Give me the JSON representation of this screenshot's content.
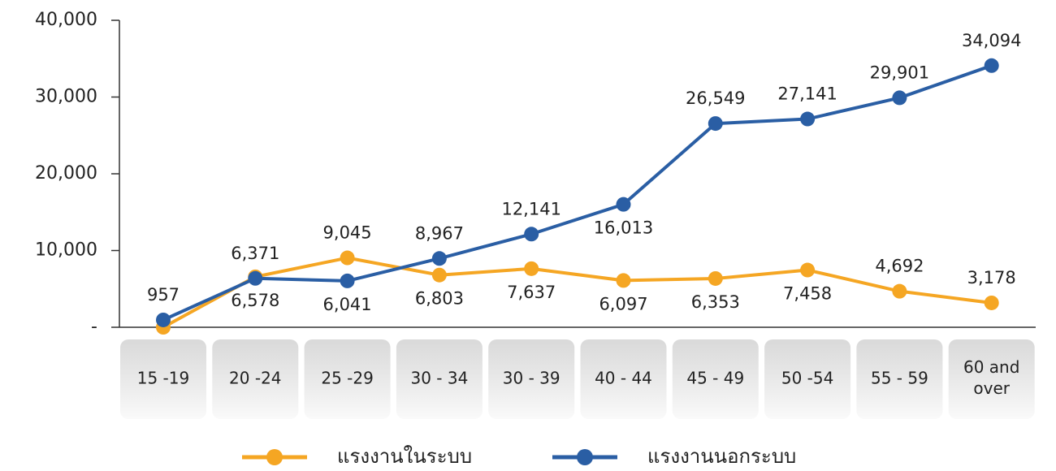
{
  "chart_data": {
    "type": "line",
    "categories": [
      "15 -19",
      "20 -24",
      "25 -29",
      "30 - 34",
      "30 - 39",
      "40 - 44",
      "45 - 49",
      "50 -54",
      "55 - 59",
      "60 and over"
    ],
    "series": [
      {
        "name": "แรงงานในระบบ",
        "color": "#f5a623",
        "values": [
          0,
          6578,
          9045,
          6803,
          7637,
          6097,
          6353,
          7458,
          4692,
          3178
        ],
        "value_labels": [
          null,
          "6,578",
          "9,045",
          "6,803",
          "7,637",
          "6,097",
          "6,353",
          "7,458",
          "4,692",
          "3,178"
        ]
      },
      {
        "name": "แรงงานนอกระบบ",
        "color": "#2a5ea4",
        "values": [
          957,
          6371,
          6041,
          8967,
          12141,
          16013,
          26549,
          27141,
          29901,
          34094
        ],
        "value_labels": [
          "957",
          "6,371",
          "6,041",
          "8,967",
          "12,141",
          "16,013",
          "26,549",
          "27,141",
          "29,901",
          "34,094"
        ]
      }
    ],
    "ylim": [
      0,
      40000
    ],
    "yticks": [
      {
        "value": 0,
        "label": "-"
      },
      {
        "value": 10000,
        "label": "10,000"
      },
      {
        "value": 20000,
        "label": "20,000"
      },
      {
        "value": 30000,
        "label": "30,000"
      },
      {
        "value": 40000,
        "label": "40,000"
      }
    ],
    "legend": "bottom"
  }
}
